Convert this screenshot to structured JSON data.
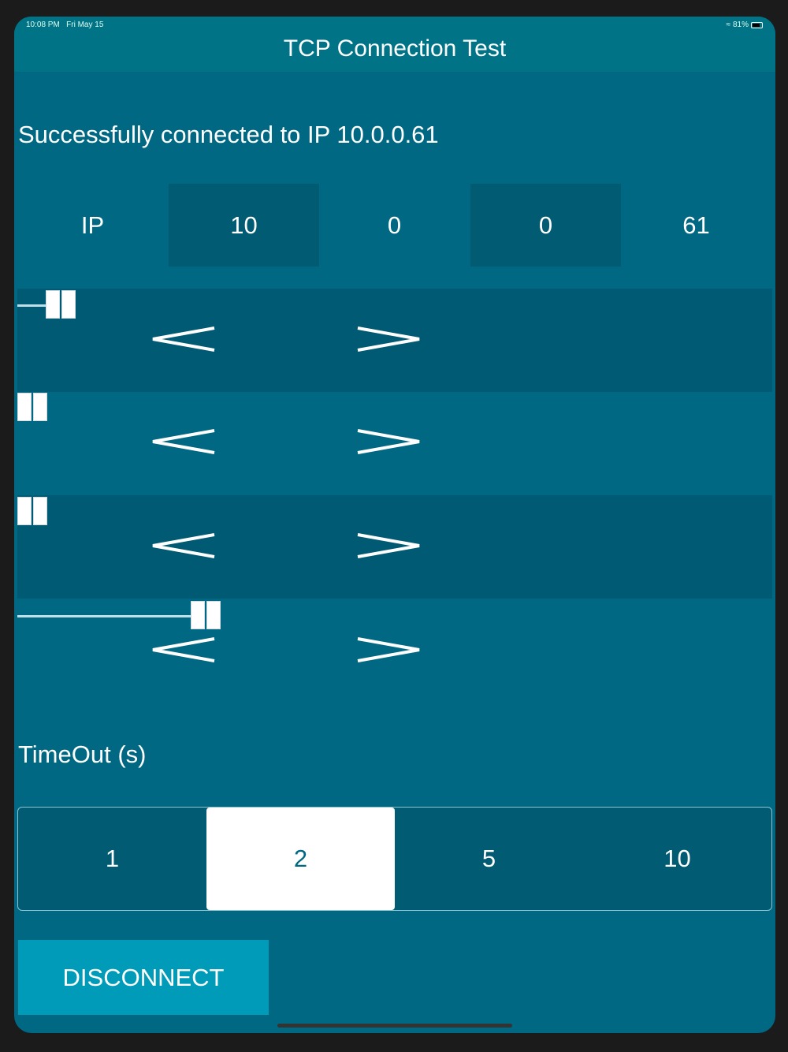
{
  "status_bar": {
    "time": "10:08 PM",
    "date": "Fri May 15",
    "battery": "81%",
    "battery_level": 0.81
  },
  "header": {
    "title": "TCP Connection Test"
  },
  "message": "Successfully connected to IP 10.0.0.61",
  "ip": {
    "label": "IP",
    "octets": [
      "10",
      "0",
      "0",
      "61"
    ]
  },
  "sliders": [
    {
      "value": 10,
      "min": 0,
      "max": 255,
      "decrement": "<",
      "increment": ">"
    },
    {
      "value": 0,
      "min": 0,
      "max": 255,
      "decrement": "<",
      "increment": ">"
    },
    {
      "value": 0,
      "min": 0,
      "max": 255,
      "decrement": "<",
      "increment": ">"
    },
    {
      "value": 61,
      "min": 0,
      "max": 255,
      "decrement": "<",
      "increment": ">"
    }
  ],
  "timeout": {
    "label": "TimeOut (s)",
    "options": [
      "1",
      "2",
      "5",
      "10"
    ],
    "selected": "2"
  },
  "disconnect_label": "DISCONNECT"
}
